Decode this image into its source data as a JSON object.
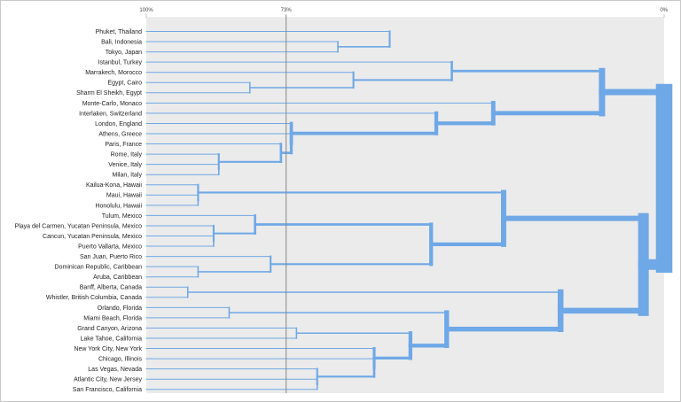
{
  "chart_data": {
    "type": "dendrogram",
    "x_ticks": [
      "100%",
      "73%",
      "0%"
    ],
    "threshold_label": "73%",
    "leaves": [
      "Phuket, Thailand",
      "Bali, Indonesia",
      "Tokyo, Japan",
      "Istanbul, Turkey",
      "Marrakech, Morocco",
      "Egypt, Cairo",
      "Sharm El Sheikh, Egypt",
      "Monte-Carlo, Monaco",
      "Interlaken, Switzerland",
      "London, England",
      "Athens, Greece",
      "Paris, France",
      "Rome, Italy",
      "Venice, Italy",
      "Milan, Italy",
      "Kailua-Kona, Hawaii",
      "Maui, Hawaii",
      "Honolulu, Hawaii",
      "Tulum, Mexico",
      "Playa del Carmen, Yucatan Peninsula, Mexico",
      "Cancun, Yucatan Peninsula, Mexico",
      "Puerto Vallarta, Mexico",
      "San Juan, Puerto Rico",
      "Dominican Republic, Caribbean",
      "Aruba, Caribbean",
      "Banff, Alberta, Canada",
      "Whistler, British Columbia, Canada",
      "Orlando, Florida",
      "Miami Beach, Florida",
      "Grand Canyon, Arizona",
      "Lake Tahoe, California",
      "New York City, New York",
      "Chicago, Illinois",
      "Las Vegas, Nevada",
      "Atlantic City, New Jersey",
      "San Francisco, California"
    ],
    "merges": [
      {
        "a": 1,
        "b": 2,
        "sim": 63
      },
      {
        "a": 0,
        "b": 36,
        "sim": 53
      },
      {
        "a": 5,
        "b": 6,
        "sim": 80
      },
      {
        "a": 4,
        "b": 38,
        "sim": 60
      },
      {
        "a": 3,
        "b": 39,
        "sim": 41
      },
      {
        "a": 13,
        "b": 14,
        "sim": 86
      },
      {
        "a": 12,
        "b": 41,
        "sim": 86
      },
      {
        "a": 11,
        "b": 42,
        "sim": 74
      },
      {
        "a": 10,
        "b": 43,
        "sim": 72
      },
      {
        "a": 9,
        "b": 44,
        "sim": 72
      },
      {
        "a": 8,
        "b": 45,
        "sim": 44
      },
      {
        "a": 7,
        "b": 46,
        "sim": 33
      },
      {
        "a": 40,
        "b": 47,
        "sim": 12
      },
      {
        "a": 16,
        "b": 17,
        "sim": 90
      },
      {
        "a": 15,
        "b": 49,
        "sim": 90
      },
      {
        "a": 20,
        "b": 21,
        "sim": 87
      },
      {
        "a": 19,
        "b": 51,
        "sim": 87
      },
      {
        "a": 18,
        "b": 52,
        "sim": 79
      },
      {
        "a": 23,
        "b": 24,
        "sim": 90
      },
      {
        "a": 22,
        "b": 54,
        "sim": 76
      },
      {
        "a": 53,
        "b": 55,
        "sim": 45
      },
      {
        "a": 50,
        "b": 56,
        "sim": 31
      },
      {
        "a": 25,
        "b": 26,
        "sim": 92
      },
      {
        "a": 27,
        "b": 28,
        "sim": 84
      },
      {
        "a": 29,
        "b": 30,
        "sim": 71
      },
      {
        "a": 34,
        "b": 35,
        "sim": 67
      },
      {
        "a": 33,
        "b": 61,
        "sim": 67
      },
      {
        "a": 32,
        "b": 62,
        "sim": 56
      },
      {
        "a": 31,
        "b": 63,
        "sim": 56
      },
      {
        "a": 60,
        "b": 64,
        "sim": 49
      },
      {
        "a": 59,
        "b": 65,
        "sim": 42
      },
      {
        "a": 58,
        "b": 66,
        "sim": 20
      },
      {
        "a": 57,
        "b": 67,
        "sim": 4
      },
      {
        "a": 48,
        "b": 68,
        "sim": 0
      }
    ],
    "colors": {
      "link": "#6fa8e6",
      "plot_bg": "#ebebeb",
      "threshold_line": "#888888",
      "grid_line": "#bdbdbd",
      "label_text": "#222222"
    }
  }
}
